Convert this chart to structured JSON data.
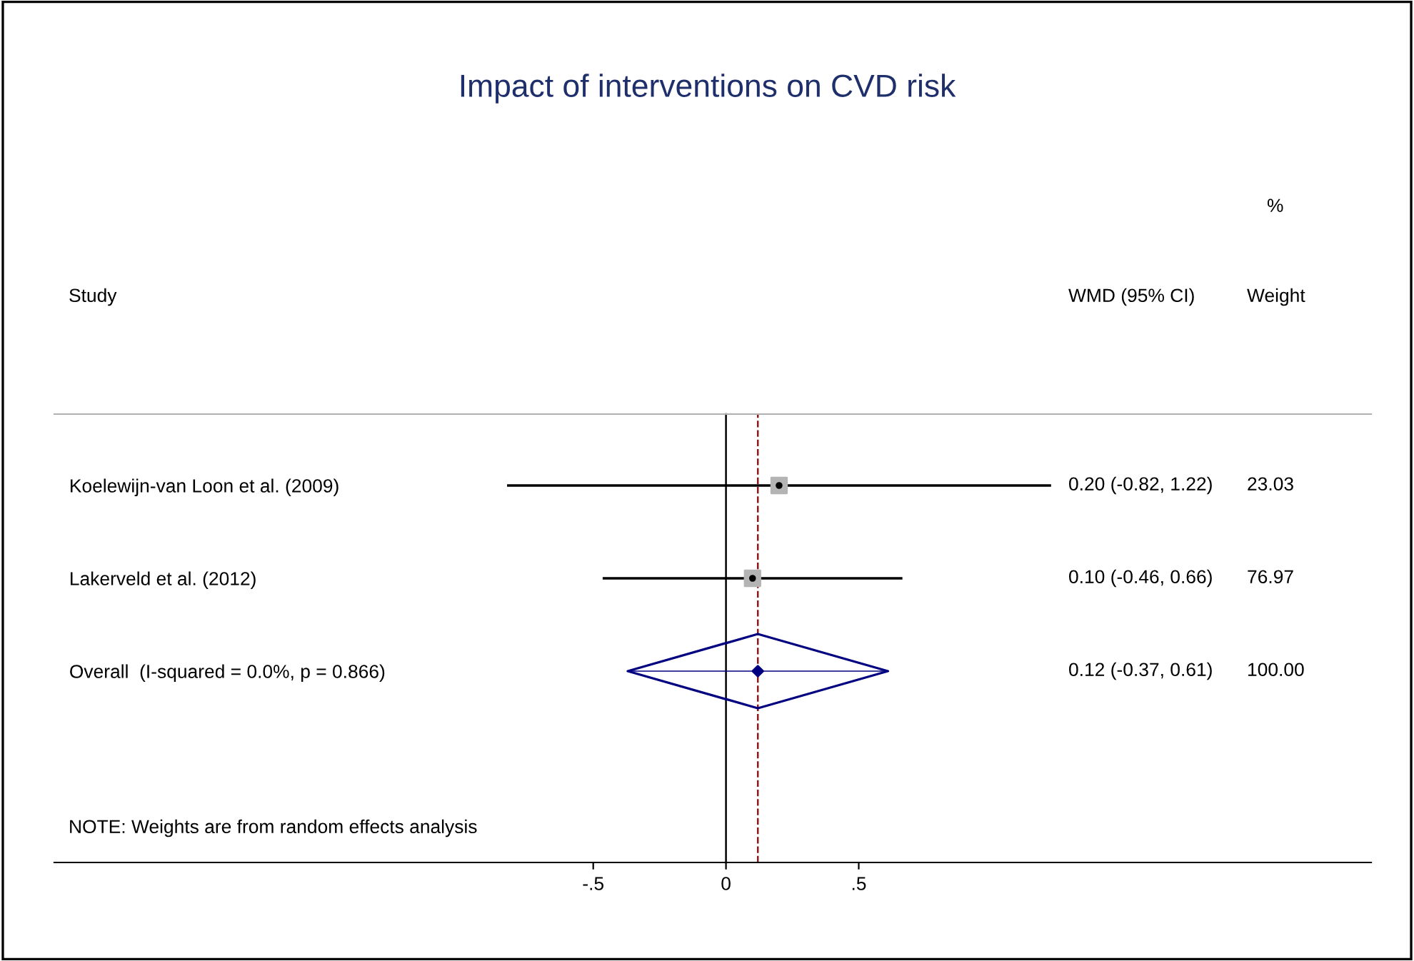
{
  "chart_data": {
    "type": "scatter",
    "orientation": "horizontal",
    "title": "Impact of interventions on CVD risk",
    "categories": [
      "Koelewijn-van Loon et al. (2009)",
      "Lakerveld et al. (2012)",
      "Overall  (I-squared = 0.0%, p = 0.866)"
    ],
    "series": [
      {
        "color": "#b4b4b4",
        "marker": "square",
        "values": [
          0.2,
          0.1,
          null
        ],
        "errors": [
          [
            -0.82,
            1.22
          ],
          [
            -0.46,
            0.66
          ],
          null
        ]
      },
      {
        "color": "#000080",
        "marker": "diamond",
        "values": [
          null,
          null,
          0.12
        ],
        "errors": [
          null,
          null,
          [
            -0.37,
            0.61
          ]
        ]
      }
    ],
    "xlim": [
      -2.53,
      2.43
    ],
    "xticks": [
      {
        "value": -0.5,
        "label": "-.5"
      },
      0,
      {
        "value": 0.5,
        "label": ".5"
      }
    ],
    "ref_lines": [
      {
        "axis": "x",
        "value": 0,
        "color": "#000000",
        "line_style": "solid"
      },
      {
        "axis": "x",
        "value": 0.12,
        "color": "#8b1a1a",
        "line_style": "dashed"
      }
    ],
    "annotations": [
      "%",
      "Study",
      "WMD (95% CI)",
      "Weight",
      "0.20 (-0.82, 1.22)",
      "23.03",
      "0.10 (-0.46, 0.66)",
      "76.97",
      "0.12 (-0.37, 0.61)",
      "100.00",
      "NOTE: Weights are from random effects analysis"
    ],
    "legend": false,
    "grid": false
  }
}
